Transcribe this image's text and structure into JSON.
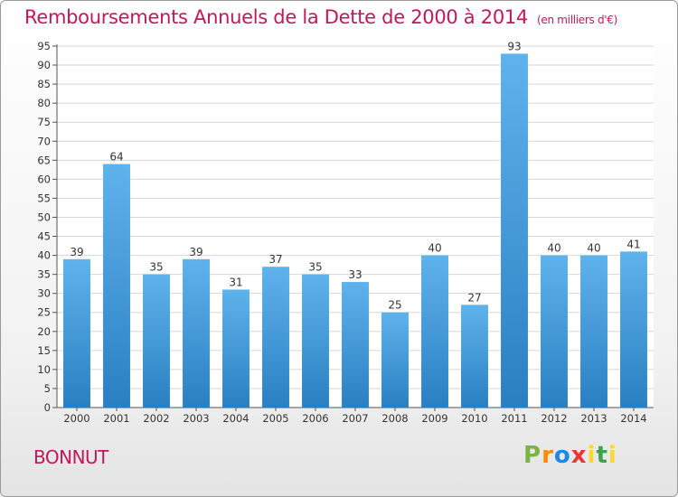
{
  "title": "Remboursements Annuels de la Dette de 2000 à 2014",
  "unit_note": "(en milliers d'€)",
  "town": "BONNUT",
  "logo_text": "Proxiti",
  "colors": {
    "bar_top": "#5eb3ec",
    "bar_bottom": "#2a7fc1",
    "title": "#c2185b",
    "grid": "#d6d6d6"
  },
  "chart_data": {
    "type": "bar",
    "title": "Remboursements Annuels de la Dette de 2000 à 2014",
    "categories": [
      "2000",
      "2001",
      "2002",
      "2003",
      "2004",
      "2005",
      "2006",
      "2007",
      "2008",
      "2009",
      "2010",
      "2011",
      "2012",
      "2013",
      "2014"
    ],
    "values": [
      39,
      64,
      35,
      39,
      31,
      37,
      35,
      33,
      25,
      40,
      27,
      93,
      40,
      40,
      41
    ],
    "ylim": [
      0,
      95
    ],
    "yticks": [
      0,
      5,
      10,
      15,
      20,
      25,
      30,
      35,
      40,
      45,
      50,
      55,
      60,
      65,
      70,
      75,
      80,
      85,
      90,
      95
    ],
    "grid": true,
    "data_labels": true,
    "xlabel": "",
    "ylabel": ""
  }
}
